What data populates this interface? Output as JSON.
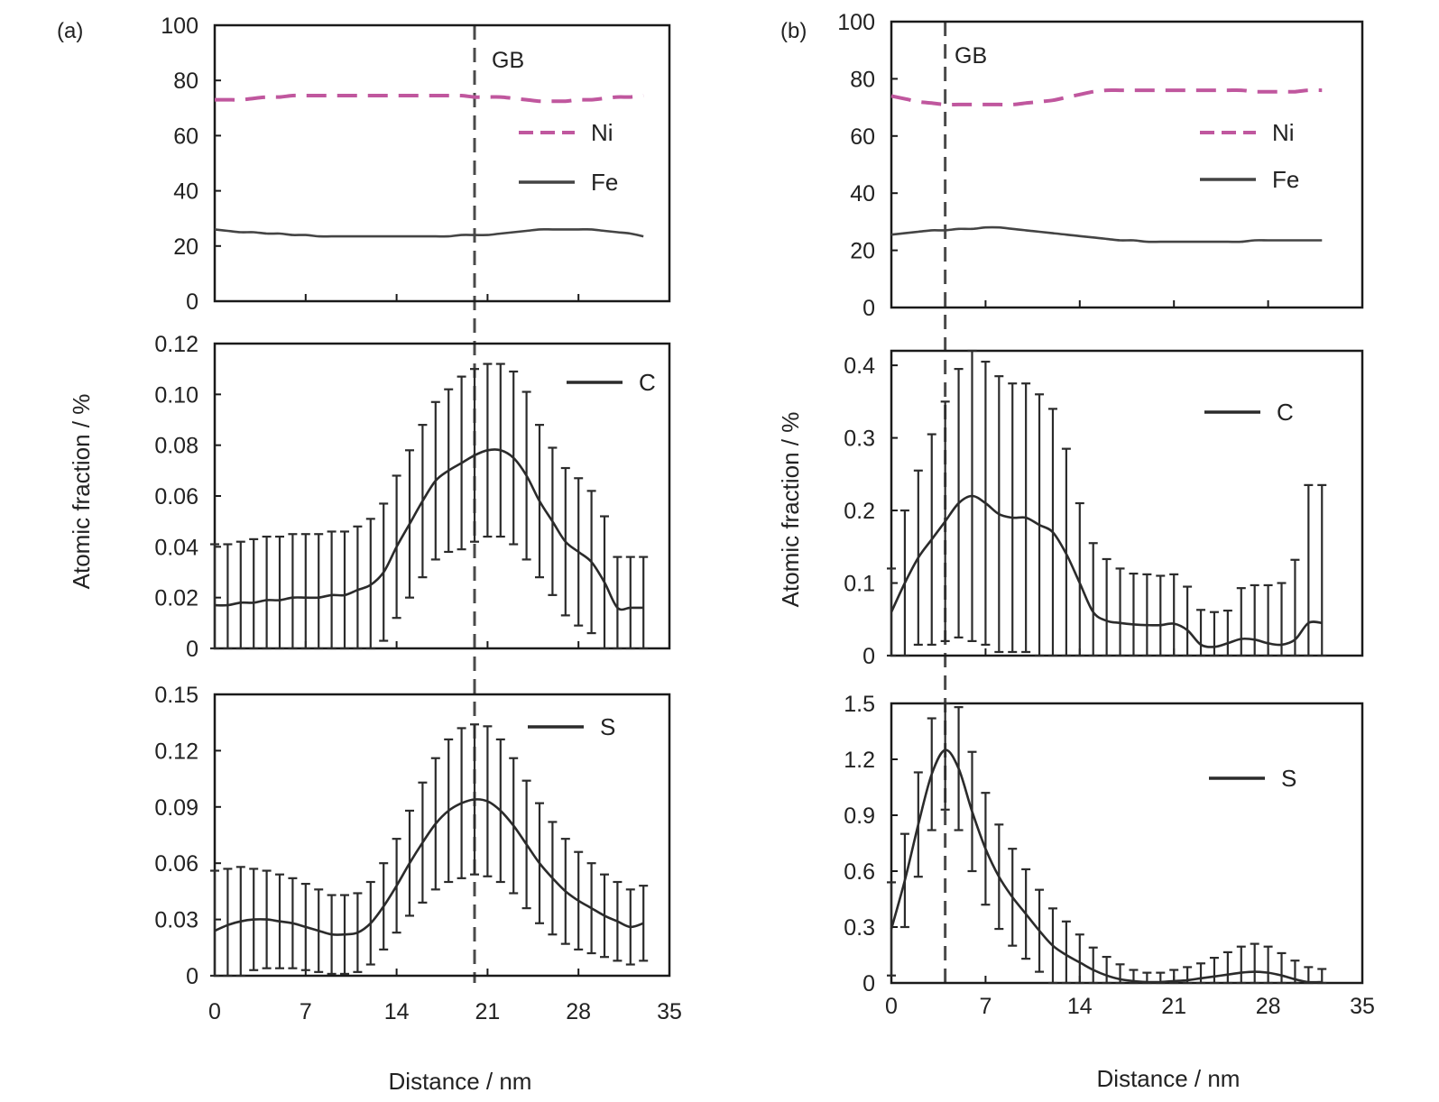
{
  "figure": {
    "panels": [
      "(a)",
      "(b)"
    ],
    "ylabel": "Atomic fraction / %",
    "xlabel": "Distance / nm",
    "gb_label": "GB",
    "colors": {
      "axes": "#1a1a1a",
      "ni": "#c0579e",
      "fe": "#444444",
      "profile": "#2b2b2b",
      "gb_line": "#4a4a4a"
    }
  },
  "chart_data": [
    {
      "panel": "(a)",
      "type": "line",
      "gb_position": 20.0,
      "x_ticks": [
        0,
        7,
        14,
        21,
        28,
        35
      ],
      "xlim": [
        0,
        35
      ],
      "xlabel": "Distance / nm",
      "subplots": [
        {
          "id": "a-top",
          "ylim": [
            0,
            100
          ],
          "y_ticks": [
            0,
            20,
            40,
            60,
            80,
            100
          ],
          "series": [
            {
              "name": "Ni",
              "style": "dashed",
              "x": [
                0,
                1,
                2,
                3,
                4,
                5,
                6,
                7,
                8,
                9,
                10,
                11,
                12,
                13,
                14,
                15,
                16,
                17,
                18,
                19,
                20,
                21,
                22,
                23,
                24,
                25,
                26,
                27,
                28,
                29,
                30,
                31,
                32,
                33
              ],
              "y": [
                73,
                73,
                73,
                73.5,
                74,
                74,
                74.5,
                74.5,
                74.5,
                74.5,
                74.5,
                74.5,
                74.5,
                74.5,
                74.5,
                74.5,
                74.5,
                74.5,
                74.5,
                74.5,
                74,
                74,
                74,
                73.5,
                73,
                72.5,
                72.5,
                72.5,
                73,
                73,
                73.5,
                74,
                74,
                74.5
              ]
            },
            {
              "name": "Fe",
              "style": "solid",
              "x": [
                0,
                1,
                2,
                3,
                4,
                5,
                6,
                7,
                8,
                9,
                10,
                11,
                12,
                13,
                14,
                15,
                16,
                17,
                18,
                19,
                20,
                21,
                22,
                23,
                24,
                25,
                26,
                27,
                28,
                29,
                30,
                31,
                32,
                33
              ],
              "y": [
                26,
                25.5,
                25,
                25,
                24.5,
                24.5,
                24,
                24,
                23.5,
                23.5,
                23.5,
                23.5,
                23.5,
                23.5,
                23.5,
                23.5,
                23.5,
                23.5,
                23.5,
                24,
                24,
                24,
                24.5,
                25,
                25.5,
                26,
                26,
                26,
                26,
                26,
                25.5,
                25,
                24.5,
                23.5
              ]
            }
          ]
        },
        {
          "id": "a-mid",
          "ylim": [
            0,
            0.12
          ],
          "y_ticks": [
            0,
            0.02,
            0.04,
            0.06,
            0.08,
            0.1,
            0.12
          ],
          "y_tick_labels": [
            "0",
            "0.02",
            "0.04",
            "0.06",
            "0.08",
            "0.10",
            "0.12"
          ],
          "series": [
            {
              "name": "C",
              "style": "solid",
              "x": [
                0,
                1,
                2,
                3,
                4,
                5,
                6,
                7,
                8,
                9,
                10,
                11,
                12,
                13,
                14,
                15,
                16,
                17,
                18,
                19,
                20,
                21,
                22,
                23,
                24,
                25,
                26,
                27,
                28,
                29,
                30,
                31,
                32,
                33
              ],
              "y": [
                0.017,
                0.017,
                0.018,
                0.018,
                0.019,
                0.019,
                0.02,
                0.02,
                0.02,
                0.021,
                0.021,
                0.023,
                0.025,
                0.03,
                0.04,
                0.049,
                0.058,
                0.066,
                0.07,
                0.073,
                0.076,
                0.078,
                0.078,
                0.075,
                0.068,
                0.058,
                0.05,
                0.042,
                0.038,
                0.034,
                0.026,
                0.016,
                0.016,
                0.016
              ],
              "error": [
                0.024,
                0.024,
                0.024,
                0.025,
                0.025,
                0.025,
                0.025,
                0.025,
                0.025,
                0.025,
                0.025,
                0.025,
                0.026,
                0.027,
                0.028,
                0.029,
                0.03,
                0.031,
                0.032,
                0.034,
                0.034,
                0.034,
                0.034,
                0.034,
                0.033,
                0.03,
                0.029,
                0.029,
                0.029,
                0.028,
                0.026,
                0.02,
                0.02,
                0.02
              ]
            }
          ]
        },
        {
          "id": "a-bot",
          "ylim": [
            0,
            0.15
          ],
          "y_ticks": [
            0,
            0.03,
            0.06,
            0.09,
            0.12,
            0.15
          ],
          "y_tick_labels": [
            "0",
            "0.03",
            "0.06",
            "0.09",
            "0.12",
            "0.15"
          ],
          "series": [
            {
              "name": "S",
              "style": "solid",
              "x": [
                0,
                1,
                2,
                3,
                4,
                5,
                6,
                7,
                8,
                9,
                10,
                11,
                12,
                13,
                14,
                15,
                16,
                17,
                18,
                19,
                20,
                21,
                22,
                23,
                24,
                25,
                26,
                27,
                28,
                29,
                30,
                31,
                32,
                33
              ],
              "y": [
                0.024,
                0.027,
                0.029,
                0.03,
                0.03,
                0.029,
                0.028,
                0.026,
                0.024,
                0.022,
                0.022,
                0.023,
                0.028,
                0.037,
                0.048,
                0.06,
                0.071,
                0.081,
                0.088,
                0.092,
                0.094,
                0.093,
                0.088,
                0.08,
                0.07,
                0.06,
                0.052,
                0.045,
                0.04,
                0.036,
                0.032,
                0.029,
                0.026,
                0.028
              ],
              "error": [
                0.032,
                0.03,
                0.029,
                0.027,
                0.026,
                0.025,
                0.024,
                0.023,
                0.022,
                0.021,
                0.021,
                0.021,
                0.022,
                0.023,
                0.025,
                0.028,
                0.032,
                0.035,
                0.038,
                0.04,
                0.04,
                0.04,
                0.038,
                0.036,
                0.034,
                0.032,
                0.03,
                0.028,
                0.026,
                0.024,
                0.022,
                0.021,
                0.02,
                0.02
              ]
            }
          ]
        }
      ]
    },
    {
      "panel": "(b)",
      "type": "line",
      "gb_position": 4.0,
      "x_ticks": [
        0,
        7,
        14,
        21,
        28,
        35
      ],
      "xlim": [
        0,
        35
      ],
      "xlabel": "Distance / nm",
      "subplots": [
        {
          "id": "b-top",
          "ylim": [
            0,
            100
          ],
          "y_ticks": [
            0,
            20,
            40,
            60,
            80,
            100
          ],
          "series": [
            {
              "name": "Ni",
              "style": "dashed",
              "x": [
                0,
                1,
                2,
                3,
                4,
                5,
                6,
                7,
                8,
                9,
                10,
                11,
                12,
                13,
                14,
                15,
                16,
                17,
                18,
                19,
                20,
                21,
                22,
                23,
                24,
                25,
                26,
                27,
                28,
                29,
                30,
                31,
                32
              ],
              "y": [
                74,
                73,
                72,
                71.5,
                71,
                71,
                71,
                71,
                71,
                71,
                71.5,
                72,
                72.5,
                73.5,
                74.5,
                75.5,
                76,
                76,
                76,
                76,
                76,
                76,
                76,
                76,
                76,
                76,
                76,
                75.5,
                75.5,
                75.5,
                75.5,
                76,
                76
              ]
            },
            {
              "name": "Fe",
              "style": "solid",
              "x": [
                0,
                1,
                2,
                3,
                4,
                5,
                6,
                7,
                8,
                9,
                10,
                11,
                12,
                13,
                14,
                15,
                16,
                17,
                18,
                19,
                20,
                21,
                22,
                23,
                24,
                25,
                26,
                27,
                28,
                29,
                30,
                31,
                32
              ],
              "y": [
                25.5,
                26,
                26.5,
                27,
                27,
                27.5,
                27.5,
                28,
                28,
                27.5,
                27,
                26.5,
                26,
                25.5,
                25,
                24.5,
                24,
                23.5,
                23.5,
                23,
                23,
                23,
                23,
                23,
                23,
                23,
                23,
                23.5,
                23.5,
                23.5,
                23.5,
                23.5,
                23.5
              ]
            }
          ]
        },
        {
          "id": "b-mid",
          "ylim": [
            0,
            0.42
          ],
          "y_ticks": [
            0,
            0.1,
            0.2,
            0.3,
            0.4
          ],
          "y_tick_labels": [
            "0",
            "0.1",
            "0.2",
            "0.3",
            "0.4"
          ],
          "series": [
            {
              "name": "C",
              "style": "solid",
              "x": [
                0,
                1,
                2,
                3,
                4,
                5,
                6,
                7,
                8,
                9,
                10,
                11,
                12,
                13,
                14,
                15,
                16,
                17,
                18,
                19,
                20,
                21,
                22,
                23,
                24,
                25,
                26,
                27,
                28,
                29,
                30,
                31,
                32
              ],
              "y": [
                0.06,
                0.1,
                0.135,
                0.16,
                0.185,
                0.21,
                0.22,
                0.21,
                0.195,
                0.19,
                0.19,
                0.18,
                0.17,
                0.14,
                0.1,
                0.06,
                0.048,
                0.045,
                0.043,
                0.042,
                0.042,
                0.044,
                0.035,
                0.015,
                0.012,
                0.017,
                0.023,
                0.022,
                0.017,
                0.015,
                0.022,
                0.045,
                0.045
              ],
              "error": [
                0.06,
                0.1,
                0.12,
                0.145,
                0.165,
                0.185,
                0.2,
                0.195,
                0.19,
                0.185,
                0.185,
                0.18,
                0.17,
                0.145,
                0.11,
                0.095,
                0.085,
                0.075,
                0.07,
                0.07,
                0.068,
                0.068,
                0.06,
                0.048,
                0.048,
                0.045,
                0.07,
                0.075,
                0.08,
                0.085,
                0.11,
                0.19,
                0.19
              ]
            }
          ]
        },
        {
          "id": "b-bot",
          "ylim": [
            0,
            1.5
          ],
          "y_ticks": [
            0,
            0.3,
            0.6,
            0.9,
            1.2,
            1.5
          ],
          "y_tick_labels": [
            "0",
            "0.3",
            "0.6",
            "0.9",
            "1.2",
            "1.5"
          ],
          "series": [
            {
              "name": "S",
              "style": "solid",
              "x": [
                0,
                1,
                2,
                3,
                4,
                5,
                6,
                7,
                8,
                9,
                10,
                11,
                12,
                13,
                14,
                15,
                16,
                17,
                18,
                19,
                20,
                21,
                22,
                23,
                24,
                25,
                26,
                27,
                28,
                29,
                30,
                31,
                32
              ],
              "y": [
                0.29,
                0.55,
                0.85,
                1.12,
                1.25,
                1.15,
                0.92,
                0.72,
                0.57,
                0.46,
                0.37,
                0.28,
                0.2,
                0.15,
                0.11,
                0.07,
                0.04,
                0.02,
                0.01,
                0.005,
                0.005,
                0.01,
                0.015,
                0.025,
                0.035,
                0.045,
                0.055,
                0.06,
                0.055,
                0.04,
                0.02,
                0.005,
                0.005
              ],
              "error": [
                0.25,
                0.25,
                0.28,
                0.3,
                0.32,
                0.33,
                0.32,
                0.3,
                0.28,
                0.26,
                0.24,
                0.22,
                0.2,
                0.18,
                0.15,
                0.12,
                0.1,
                0.08,
                0.06,
                0.05,
                0.05,
                0.06,
                0.07,
                0.08,
                0.1,
                0.12,
                0.14,
                0.15,
                0.14,
                0.12,
                0.1,
                0.08,
                0.07
              ]
            }
          ]
        }
      ]
    }
  ]
}
